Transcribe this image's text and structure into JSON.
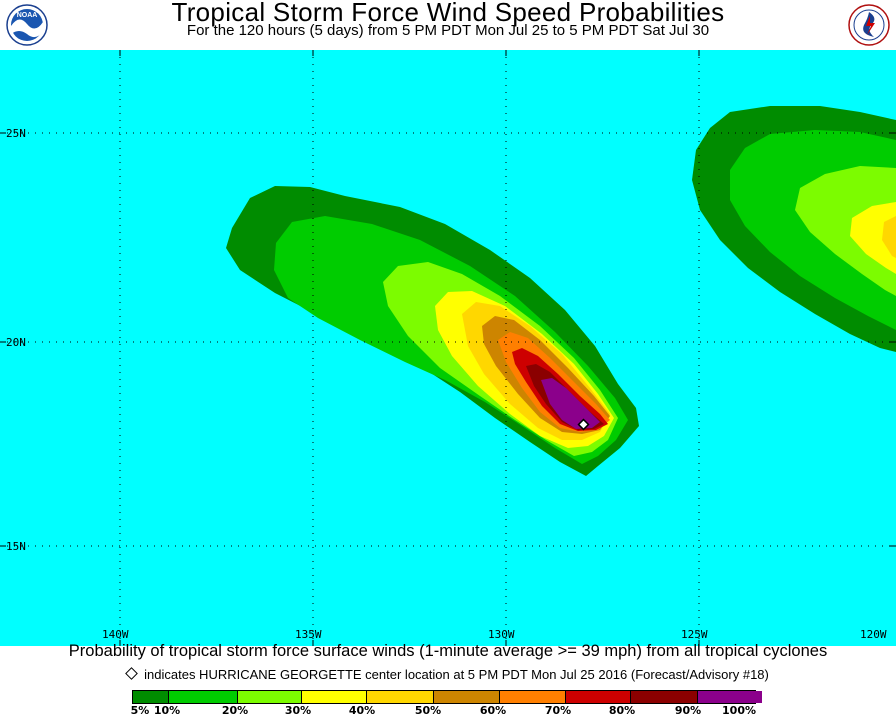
{
  "header": {
    "title": "Tropical Storm Force Wind Speed Probabilities",
    "subtitle": "For the 120 hours (5 days) from 5 PM PDT Mon Jul 25 to 5 PM PDT Sat Jul 30",
    "left_logo": "NOAA",
    "right_logo_icon": "national-weather-service-logo"
  },
  "map": {
    "ocean_color": "#00ffff",
    "gridline_style": "dotted",
    "lat_labels": [
      "25N",
      "20N",
      "15N"
    ],
    "lon_labels": [
      "140W",
      "135W",
      "130W",
      "125W",
      "120W"
    ],
    "storm_marker_icon": "storm-center-diamond-icon"
  },
  "footer": {
    "description": "Probability of tropical storm force surface winds (1-minute average >= 39 mph) from all tropical cyclones",
    "marker_note": "indicates HURRICANE GEORGETTE center location at 5 PM PDT Mon Jul 25 2016 (Forecast/Advisory #18)"
  },
  "legend": {
    "colors": [
      "#008c00",
      "#00cc00",
      "#7cfc00",
      "#ffff00",
      "#ffd700",
      "#cd8500",
      "#ff7f00",
      "#cd0000",
      "#8b0000",
      "#8b008b"
    ],
    "labels": [
      "5%",
      "10%",
      "20%",
      "30%",
      "40%",
      "50%",
      "60%",
      "70%",
      "80%",
      "90%",
      "100%"
    ]
  }
}
